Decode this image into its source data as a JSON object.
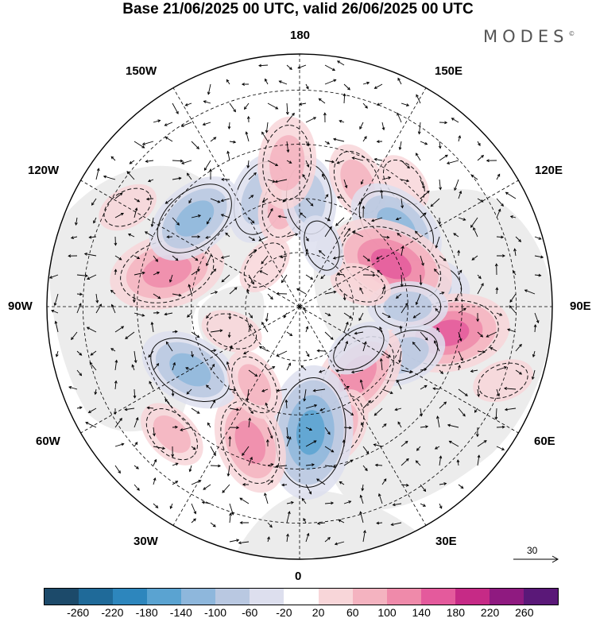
{
  "title": "Base 21/06/2025 00 UTC, valid 26/06/2025 00 UTC",
  "logo": "MODES",
  "logo_mark": "©",
  "longitude_labels": {
    "top": "180",
    "bottom": "0",
    "left": "90W",
    "right": "90E",
    "upper_left_outer": "150W",
    "upper_left_inner": "120W",
    "lower_left_inner": "60W",
    "lower_left_outer": "30W",
    "upper_right_outer": "150E",
    "upper_right_inner": "120E",
    "lower_right_inner": "60E",
    "lower_right_outer": "30E"
  },
  "reference_vector": {
    "label": "30"
  },
  "colorbar": {
    "colors": [
      "#1c4a6a",
      "#1f6a99",
      "#2d86bd",
      "#5aa3d1",
      "#8eb7dc",
      "#b9c8e1",
      "#dddfee",
      "#ffffff",
      "#f8d6d9",
      "#f4b3c0",
      "#ef8aaa",
      "#e45a9c",
      "#c62a86",
      "#8f1a80",
      "#5a1878"
    ],
    "tick_labels": [
      "-260",
      "-220",
      "-180",
      "-140",
      "-100",
      "-60",
      "-20",
      "20",
      "60",
      "100",
      "140",
      "180",
      "220",
      "260"
    ]
  },
  "anomalies": [
    {
      "lon": -105,
      "lat": 52,
      "value": 130
    },
    {
      "lon": -160,
      "lat": 58,
      "value": -90
    },
    {
      "lon": -170,
      "lat": 62,
      "value": 60
    },
    {
      "lon": 175,
      "lat": 60,
      "value": -80
    },
    {
      "lon": -175,
      "lat": 50,
      "value": 90
    },
    {
      "lon": 155,
      "lat": 52,
      "value": 70
    },
    {
      "lon": 140,
      "lat": 45,
      "value": 40
    },
    {
      "lon": 130,
      "lat": 55,
      "value": -110
    },
    {
      "lon": -130,
      "lat": 52,
      "value": -110
    },
    {
      "lon": 100,
      "lat": 55,
      "value": -90
    },
    {
      "lon": 115,
      "lat": 62,
      "value": 150
    },
    {
      "lon": 80,
      "lat": 48,
      "value": 140
    },
    {
      "lon": 90,
      "lat": 60,
      "value": -70
    },
    {
      "lon": 65,
      "lat": 58,
      "value": -80
    },
    {
      "lon": 40,
      "lat": 65,
      "value": 120
    },
    {
      "lon": 20,
      "lat": 55,
      "value": 60
    },
    {
      "lon": 5,
      "lat": 55,
      "value": -160
    },
    {
      "lon": -20,
      "lat": 50,
      "value": 110
    },
    {
      "lon": -60,
      "lat": 55,
      "value": -110
    },
    {
      "lon": -30,
      "lat": 65,
      "value": 60
    },
    {
      "lon": -70,
      "lat": 70,
      "value": 40
    },
    {
      "lon": 55,
      "lat": 70,
      "value": -50
    },
    {
      "lon": 110,
      "lat": 72,
      "value": 40
    },
    {
      "lon": -140,
      "lat": 75,
      "value": 40
    },
    {
      "lon": 160,
      "lat": 72,
      "value": -40
    },
    {
      "lon": -45,
      "lat": 40,
      "value": 60
    },
    {
      "lon": 70,
      "lat": 30,
      "value": 40
    },
    {
      "lon": -120,
      "lat": 35,
      "value": 40
    }
  ]
}
